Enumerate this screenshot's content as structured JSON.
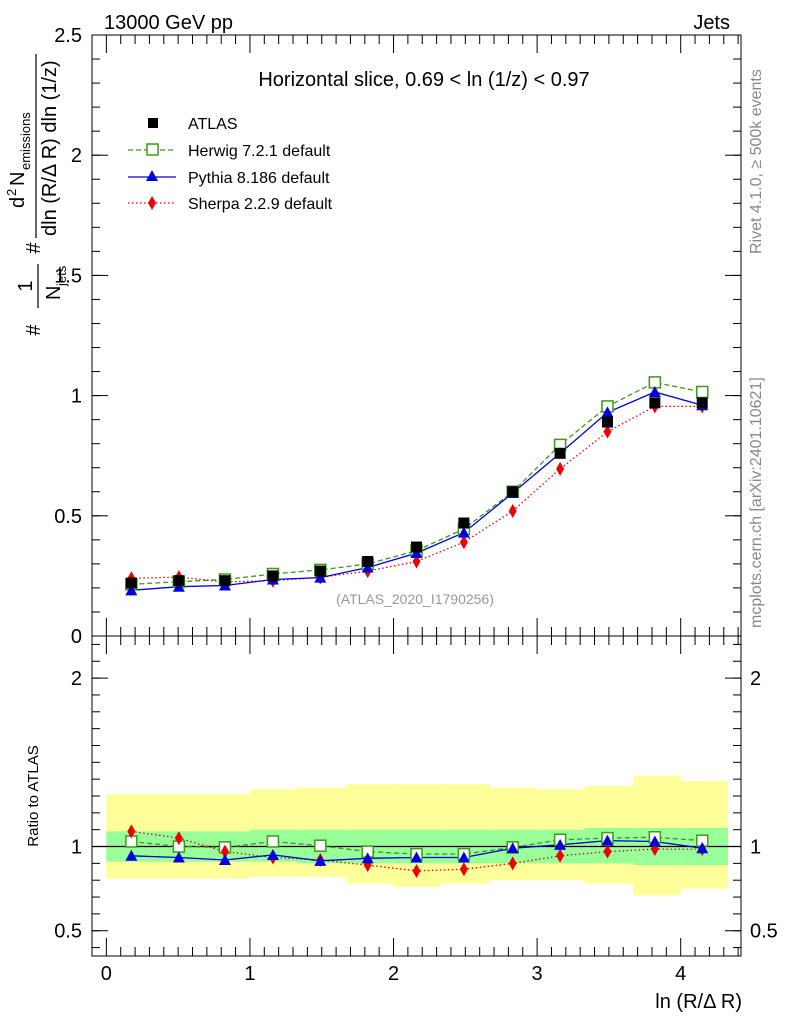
{
  "header": {
    "energy_label": "13000 GeV pp",
    "process_label": "Jets",
    "rivet_label": "Rivet 4.1.0, ≥ 500k events",
    "site_label": "mcplots.cern.ch [arXiv:2401.10621]"
  },
  "chart_data": [
    {
      "type": "line",
      "panel": "main",
      "title": "Horizontal slice, 0.69 < ln (1/z) < 0.97",
      "watermark": "(ATLAS_2020_I1790256)",
      "ylabel": "#1/N_jets #d² N_emissions/dln (R/Δ R) dln (1/z)",
      "ylabel_parts": {
        "hash1": "#",
        "frac1_num": "1",
        "frac1_den": "N",
        "frac1_den_sub": "jets",
        "hash2": "#",
        "frac2_num_d": "d",
        "frac2_num_sup": "2",
        "frac2_num_n": "N",
        "frac2_num_sub": "emissions",
        "frac2_den": "dln (R/Δ R) dln (1/z)"
      },
      "xlim": [
        -0.1,
        4.42
      ],
      "ylim": [
        0,
        2.5
      ],
      "yticks": [
        0,
        0.5,
        1,
        1.5,
        2,
        2.5
      ],
      "ytick_labels": [
        "0",
        "0.5",
        "1",
        "1.5",
        "2",
        "2.5"
      ],
      "x": [
        0.174,
        0.505,
        0.826,
        1.16,
        1.49,
        1.82,
        2.16,
        2.49,
        2.83,
        3.16,
        3.49,
        3.82,
        4.15
      ],
      "series": [
        {
          "name": "ATLAS",
          "key": "atlas",
          "values": [
            0.22,
            0.23,
            0.23,
            0.25,
            0.27,
            0.31,
            0.37,
            0.47,
            0.6,
            0.76,
            0.89,
            0.97,
            0.97
          ]
        },
        {
          "name": "Herwig 7.2.1 default",
          "key": "herwig",
          "values": [
            0.215,
            0.226,
            0.235,
            0.258,
            0.275,
            0.3,
            0.355,
            0.445,
            0.6,
            0.795,
            0.955,
            1.055,
            1.015
          ]
        },
        {
          "name": "Pythia 8.186 default",
          "key": "pythia",
          "values": [
            0.19,
            0.205,
            0.21,
            0.235,
            0.243,
            0.285,
            0.345,
            0.43,
            0.595,
            0.76,
            0.93,
            1.015,
            0.96
          ]
        },
        {
          "name": "Sherpa 2.2.9 default",
          "key": "sherpa",
          "values": [
            0.24,
            0.245,
            0.225,
            0.23,
            0.244,
            0.27,
            0.31,
            0.39,
            0.52,
            0.695,
            0.85,
            0.955,
            0.955
          ]
        }
      ]
    },
    {
      "type": "line",
      "panel": "ratio",
      "ylabel": "Ratio to ATLAS",
      "xlabel": "ln (R/Δ R)",
      "xlim": [
        -0.1,
        4.42
      ],
      "ylim": [
        0.35,
        2.25
      ],
      "yticks": [
        0.5,
        1,
        2
      ],
      "ytick_labels": [
        "0.5",
        "1",
        "2"
      ],
      "xticks": [
        0,
        1,
        2,
        3,
        4
      ],
      "xtick_labels": [
        "0",
        "1",
        "2",
        "3",
        "4"
      ],
      "reference": 1,
      "bin_edges": [
        0,
        0.33,
        0.67,
        1.0,
        1.33,
        1.67,
        2.0,
        2.33,
        2.67,
        3.0,
        3.33,
        3.67,
        4.0,
        4.33
      ],
      "band_outer": {
        "lo": [
          0.81,
          0.81,
          0.81,
          0.82,
          0.82,
          0.78,
          0.76,
          0.78,
          0.8,
          0.8,
          0.78,
          0.71,
          0.75
        ],
        "hi": [
          1.31,
          1.31,
          1.31,
          1.34,
          1.35,
          1.37,
          1.37,
          1.37,
          1.35,
          1.34,
          1.36,
          1.42,
          1.39
        ]
      },
      "band_inner": {
        "lo": [
          0.91,
          0.91,
          0.91,
          0.91,
          0.9,
          0.9,
          0.9,
          0.9,
          0.9,
          0.9,
          0.9,
          0.89,
          0.89
        ],
        "hi": [
          1.09,
          1.09,
          1.09,
          1.1,
          1.1,
          1.1,
          1.1,
          1.1,
          1.1,
          1.1,
          1.11,
          1.11,
          1.11
        ]
      },
      "series": [
        {
          "name": "Herwig 7.2.1 default",
          "key": "herwig",
          "values": [
            1.03,
            1.0,
            0.995,
            1.03,
            1.005,
            0.97,
            0.955,
            0.955,
            0.995,
            1.04,
            1.05,
            1.055,
            1.035
          ]
        },
        {
          "name": "Pythia 8.186 default",
          "key": "pythia",
          "values": [
            0.945,
            0.935,
            0.92,
            0.95,
            0.915,
            0.93,
            0.935,
            0.935,
            0.99,
            1.01,
            1.035,
            1.03,
            0.99
          ]
        },
        {
          "name": "Sherpa 2.2.9 default",
          "key": "sherpa",
          "values": [
            1.09,
            1.05,
            0.97,
            0.935,
            0.92,
            0.89,
            0.855,
            0.865,
            0.9,
            0.945,
            0.97,
            0.985,
            0.985
          ]
        }
      ]
    }
  ],
  "colors": {
    "atlas": "#000000",
    "herwig": "#3a9a1a",
    "pythia": "#0000dd",
    "sherpa": "#ee0000",
    "band_outer": "#ffff99",
    "band_inner": "#99ff99",
    "watermark": "#999999",
    "side_text": "#888888"
  }
}
